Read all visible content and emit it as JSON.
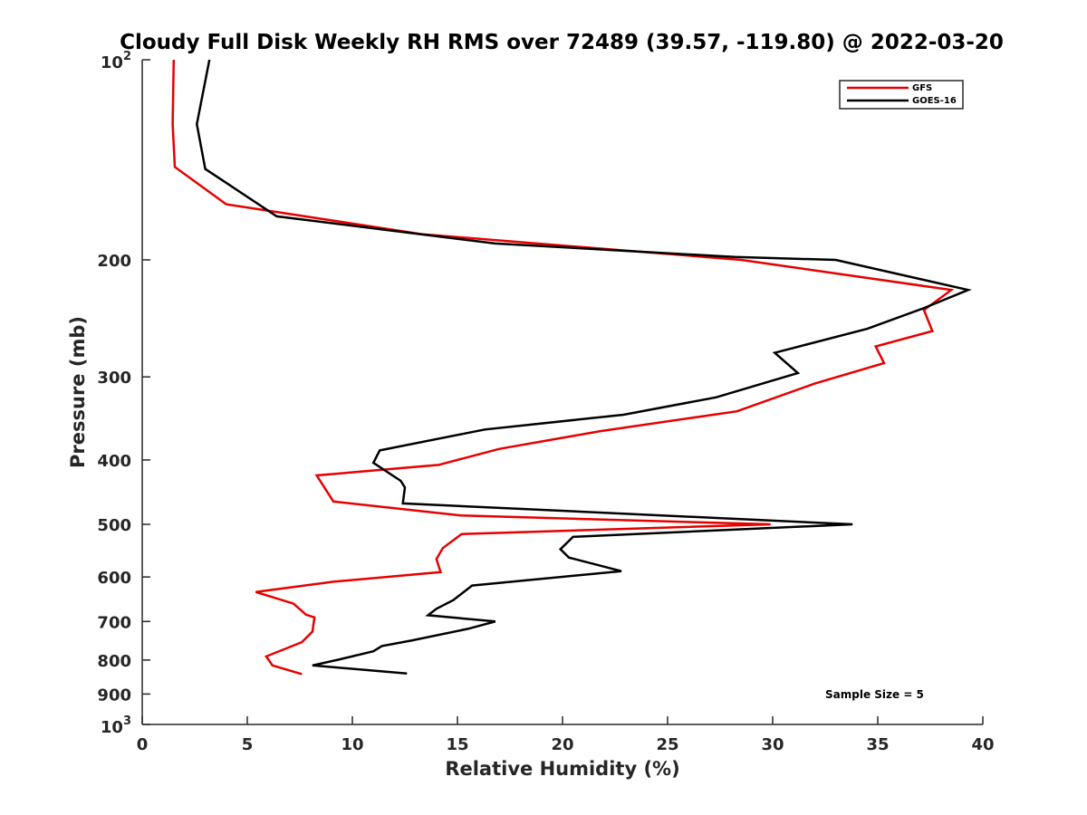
{
  "chart_data": {
    "type": "line",
    "title": "Cloudy Full Disk Weekly RH RMS over 72489 (39.57, -119.80) @ 2022-03-20",
    "xlabel": "Relative Humidity (%)",
    "ylabel": "Pressure (mb)",
    "xlim": [
      0,
      40
    ],
    "ylim": [
      100,
      1000
    ],
    "yscale": "log",
    "y_reversed": true,
    "x_ticks": [
      0,
      5,
      10,
      15,
      20,
      25,
      30,
      35,
      40
    ],
    "x_tick_labels": [
      "0",
      "5",
      "10",
      "15",
      "20",
      "25",
      "30",
      "35",
      "40"
    ],
    "y_ticks": [
      {
        "value": 100,
        "base": "10",
        "exp": "2"
      },
      {
        "value": 200,
        "label": "200"
      },
      {
        "value": 300,
        "label": "300"
      },
      {
        "value": 400,
        "label": "400"
      },
      {
        "value": 500,
        "label": "500"
      },
      {
        "value": 600,
        "label": "600"
      },
      {
        "value": 700,
        "label": "700"
      },
      {
        "value": 800,
        "label": "800"
      },
      {
        "value": 900,
        "label": "900"
      },
      {
        "value": 1000,
        "base": "10",
        "exp": "3"
      }
    ],
    "grid": false,
    "legend_position": "top-right",
    "annotation": "Sample Size = 5",
    "series": [
      {
        "name": "GFS",
        "color": "#e60000",
        "points": [
          [
            1.5,
            100
          ],
          [
            1.45,
            125
          ],
          [
            1.55,
            145
          ],
          [
            4.0,
            165
          ],
          [
            13.3,
            183
          ],
          [
            28.5,
            200
          ],
          [
            38.5,
            222
          ],
          [
            37.2,
            238
          ],
          [
            37.6,
            256
          ],
          [
            34.9,
            270
          ],
          [
            35.3,
            286
          ],
          [
            32.0,
            307
          ],
          [
            28.3,
            338
          ],
          [
            21.8,
            362
          ],
          [
            17.0,
            385
          ],
          [
            14.1,
            407
          ],
          [
            8.3,
            422
          ],
          [
            9.1,
            462
          ],
          [
            15.2,
            485
          ],
          [
            29.9,
            500
          ],
          [
            15.2,
            517
          ],
          [
            14.3,
            543
          ],
          [
            14.0,
            564
          ],
          [
            14.2,
            590
          ],
          [
            9.1,
            610
          ],
          [
            5.4,
            632
          ],
          [
            7.2,
            658
          ],
          [
            7.8,
            684
          ],
          [
            8.2,
            690
          ],
          [
            8.1,
            725
          ],
          [
            7.6,
            752
          ],
          [
            5.9,
            790
          ],
          [
            6.2,
            815
          ],
          [
            7.6,
            840
          ]
        ]
      },
      {
        "name": "GOES-16",
        "color": "#000000",
        "points": [
          [
            3.2,
            100
          ],
          [
            2.6,
            125
          ],
          [
            3.0,
            146
          ],
          [
            6.4,
            172
          ],
          [
            16.8,
            189
          ],
          [
            28.2,
            198
          ],
          [
            33.0,
            200
          ],
          [
            39.3,
            222
          ],
          [
            37.1,
            237
          ],
          [
            34.5,
            254
          ],
          [
            30.1,
            276
          ],
          [
            31.2,
            296
          ],
          [
            27.3,
            322
          ],
          [
            22.9,
            342
          ],
          [
            16.3,
            360
          ],
          [
            11.3,
            387
          ],
          [
            11.0,
            404
          ],
          [
            12.3,
            430
          ],
          [
            12.5,
            440
          ],
          [
            12.4,
            465
          ],
          [
            33.8,
            500
          ],
          [
            20.5,
            522
          ],
          [
            19.9,
            545
          ],
          [
            20.3,
            561
          ],
          [
            22.8,
            588
          ],
          [
            15.7,
            618
          ],
          [
            14.8,
            650
          ],
          [
            14.0,
            670
          ],
          [
            13.6,
            685
          ],
          [
            16.8,
            700
          ],
          [
            15.5,
            718
          ],
          [
            12.8,
            748
          ],
          [
            11.4,
            762
          ],
          [
            11.0,
            776
          ],
          [
            9.4,
            798
          ],
          [
            8.1,
            815
          ],
          [
            12.6,
            838
          ]
        ]
      }
    ]
  }
}
